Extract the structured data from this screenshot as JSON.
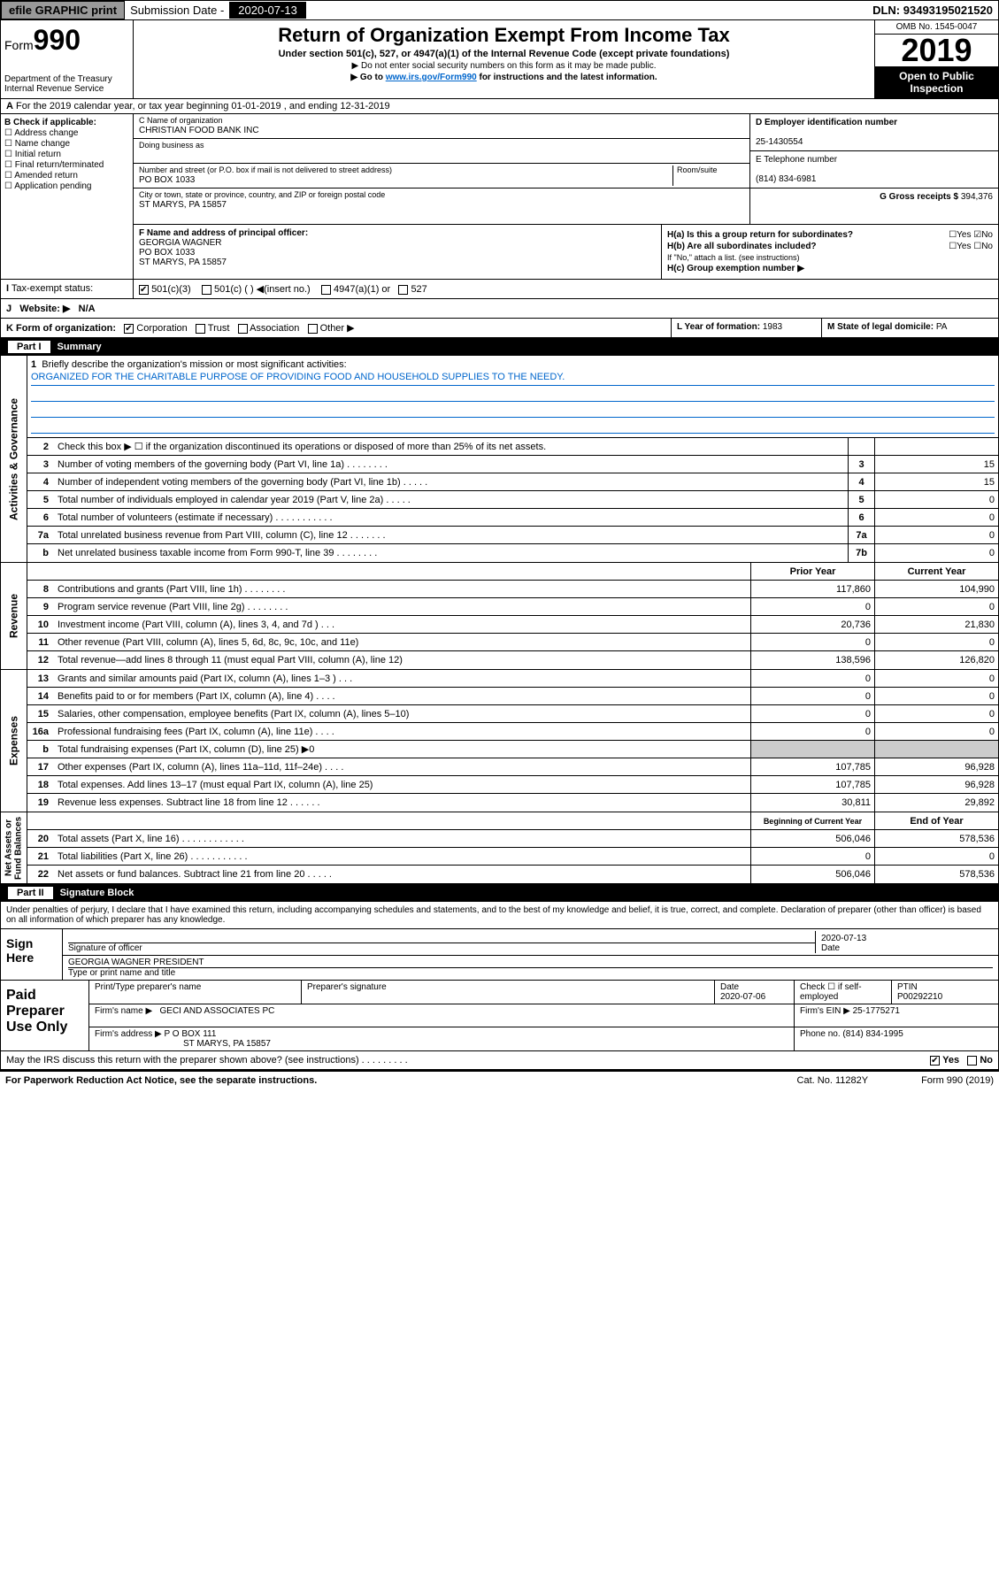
{
  "topbar": {
    "efile": "efile GRAPHIC print",
    "sub_label": "Submission Date - ",
    "sub_date": "2020-07-13",
    "dln_label": "DLN: ",
    "dln": "93493195021520"
  },
  "header": {
    "form_prefix": "Form",
    "form_num": "990",
    "dept": "Department of the Treasury\nInternal Revenue Service",
    "title": "Return of Organization Exempt From Income Tax",
    "subtitle": "Under section 501(c), 527, or 4947(a)(1) of the Internal Revenue Code (except private foundations)",
    "note1": "▶ Do not enter social security numbers on this form as it may be made public.",
    "note2_pre": "▶ Go to ",
    "note2_link": "www.irs.gov/Form990",
    "note2_post": " for instructions and the latest information.",
    "omb": "OMB No. 1545-0047",
    "year": "2019",
    "open": "Open to Public Inspection"
  },
  "line_a": "For the 2019 calendar year, or tax year beginning 01-01-2019     , and ending 12-31-2019",
  "box_b": {
    "label": "B Check if applicable:",
    "opts": [
      "Address change",
      "Name change",
      "Initial return",
      "Final return/terminated",
      "Amended return",
      "Application pending"
    ]
  },
  "box_c": {
    "name_lbl": "C Name of organization",
    "name": "CHRISTIAN FOOD BANK INC",
    "dba_lbl": "Doing business as",
    "street_lbl": "Number and street (or P.O. box if mail is not delivered to street address)",
    "street": "PO BOX 1033",
    "room_lbl": "Room/suite",
    "city_lbl": "City or town, state or province, country, and ZIP or foreign postal code",
    "city": "ST MARYS, PA  15857"
  },
  "box_d": {
    "ein_lbl": "D Employer identification number",
    "ein": "25-1430554",
    "tel_lbl": "E Telephone number",
    "tel": "(814) 834-6981",
    "gross_lbl": "G Gross receipts $ ",
    "gross": "394,376"
  },
  "box_f": {
    "lbl": "F  Name and address of principal officer:",
    "name": "GEORGIA WAGNER",
    "addr1": "PO BOX 1033",
    "addr2": "ST MARYS, PA   15857"
  },
  "box_h": {
    "a": "H(a)  Is this a group return for subordinates?",
    "b": "H(b)  Are all subordinates included?",
    "b_note": "If \"No,\" attach a list. (see instructions)",
    "c": "H(c)  Group exemption number ▶"
  },
  "row_i": {
    "lbl": "Tax-exempt status:",
    "o1": "501(c)(3)",
    "o2": "501(c) (   ) ◀(insert no.)",
    "o3": "4947(a)(1) or",
    "o4": "527"
  },
  "row_j": {
    "lbl": "Website: ▶",
    "val": "N/A"
  },
  "row_k": {
    "k1": "K Form of organization:",
    "opts": [
      "Corporation",
      "Trust",
      "Association",
      "Other ▶"
    ],
    "l_lbl": "L Year of formation: ",
    "l_val": "1983",
    "m_lbl": "M State of legal domicile: ",
    "m_val": "PA"
  },
  "part1": {
    "num": "Part I",
    "title": "Summary"
  },
  "mission": {
    "num": "1",
    "lbl": "Briefly describe the organization's mission or most significant activities:",
    "txt": "ORGANIZED FOR THE CHARITABLE PURPOSE OF PROVIDING FOOD AND HOUSEHOLD SUPPLIES TO THE NEEDY."
  },
  "gov_rows": [
    {
      "n": "2",
      "t": "Check this box ▶ ☐  if the organization discontinued its operations or disposed of more than 25% of its net assets.",
      "bn": "",
      "v": ""
    },
    {
      "n": "3",
      "t": "Number of voting members of the governing body (Part VI, line 1a)  .    .    .    .    .    .    .    .",
      "bn": "3",
      "v": "15"
    },
    {
      "n": "4",
      "t": "Number of independent voting members of the governing body (Part VI, line 1b)  .    .    .    .    .",
      "bn": "4",
      "v": "15"
    },
    {
      "n": "5",
      "t": "Total number of individuals employed in calendar year 2019 (Part V, line 2a)   .    .    .    .    .",
      "bn": "5",
      "v": "0"
    },
    {
      "n": "6",
      "t": "Total number of volunteers (estimate if necessary)   .    .    .    .    .    .    .    .    .    .    .",
      "bn": "6",
      "v": "0"
    },
    {
      "n": "7a",
      "t": "Total unrelated business revenue from Part VIII, column (C), line 12  .    .    .    .    .    .    .",
      "bn": "7a",
      "v": "0"
    },
    {
      "n": "b",
      "t": "Net unrelated business taxable income from Form 990-T, line 39   .    .    .    .    .    .    .    .",
      "bn": "7b",
      "v": "0"
    }
  ],
  "two_col_hdr": {
    "py": "Prior Year",
    "cy": "Current Year"
  },
  "rev_rows": [
    {
      "n": "8",
      "t": "Contributions and grants (Part VIII, line 1h)   .    .    .    .    .    .    .    .",
      "py": "117,860",
      "cy": "104,990"
    },
    {
      "n": "9",
      "t": "Program service revenue (Part VIII, line 2g)   .    .    .    .    .    .    .    .",
      "py": "0",
      "cy": "0"
    },
    {
      "n": "10",
      "t": "Investment income (Part VIII, column (A), lines 3, 4, and 7d )   .    .    .",
      "py": "20,736",
      "cy": "21,830"
    },
    {
      "n": "11",
      "t": "Other revenue (Part VIII, column (A), lines 5, 6d, 8c, 9c, 10c, and 11e)",
      "py": "0",
      "cy": "0"
    },
    {
      "n": "12",
      "t": "Total revenue—add lines 8 through 11 (must equal Part VIII, column (A), line 12)",
      "py": "138,596",
      "cy": "126,820"
    }
  ],
  "exp_rows": [
    {
      "n": "13",
      "t": "Grants and similar amounts paid (Part IX, column (A), lines 1–3 )   .    .    .",
      "py": "0",
      "cy": "0"
    },
    {
      "n": "14",
      "t": "Benefits paid to or for members (Part IX, column (A), line 4)   .    .    .    .",
      "py": "0",
      "cy": "0"
    },
    {
      "n": "15",
      "t": "Salaries, other compensation, employee benefits (Part IX, column (A), lines 5–10)",
      "py": "0",
      "cy": "0"
    },
    {
      "n": "16a",
      "t": "Professional fundraising fees (Part IX, column (A), line 11e)   .    .    .    .",
      "py": "0",
      "cy": "0"
    },
    {
      "n": "b",
      "t": "Total fundraising expenses (Part IX, column (D), line 25) ▶0",
      "py": "",
      "cy": "",
      "grey": true
    },
    {
      "n": "17",
      "t": "Other expenses (Part IX, column (A), lines 11a–11d, 11f–24e)   .    .    .    .",
      "py": "107,785",
      "cy": "96,928"
    },
    {
      "n": "18",
      "t": "Total expenses. Add lines 13–17 (must equal Part IX, column (A), line 25)",
      "py": "107,785",
      "cy": "96,928"
    },
    {
      "n": "19",
      "t": "Revenue less expenses. Subtract line 18 from line 12   .    .    .    .    .    .",
      "py": "30,811",
      "cy": "29,892"
    }
  ],
  "na_hdr": {
    "py": "Beginning of Current Year",
    "cy": "End of Year"
  },
  "na_rows": [
    {
      "n": "20",
      "t": "Total assets (Part X, line 16)   .    .    .    .    .    .    .    .    .    .    .    .",
      "py": "506,046",
      "cy": "578,536"
    },
    {
      "n": "21",
      "t": "Total liabilities (Part X, line 26)   .    .    .    .    .    .    .    .    .    .    .",
      "py": "0",
      "cy": "0"
    },
    {
      "n": "22",
      "t": "Net assets or fund balances. Subtract line 21 from line 20   .    .    .    .    .",
      "py": "506,046",
      "cy": "578,536"
    }
  ],
  "vtabs": {
    "gov": "Activities & Governance",
    "rev": "Revenue",
    "exp": "Expenses",
    "na": "Net Assets or\nFund Balances"
  },
  "part2": {
    "num": "Part II",
    "title": "Signature Block"
  },
  "sig_decl": "Under penalties of perjury, I declare that I have examined this return, including accompanying schedules and statements, and to the best of my knowledge and belief, it is true, correct, and complete. Declaration of preparer (other than officer) is based on all information of which preparer has any knowledge.",
  "sign": {
    "side": "Sign Here",
    "sig_lbl": "Signature of officer",
    "date": "2020-07-13",
    "date_lbl": "Date",
    "name": "GEORGIA WAGNER  PRESIDENT",
    "name_lbl": "Type or print name and title"
  },
  "paid": {
    "side": "Paid Preparer Use Only",
    "h1": "Print/Type preparer's name",
    "h2": "Preparer's signature",
    "h3": "Date",
    "date": "2020-07-06",
    "h4": "Check ☐ if self-employed",
    "h5": "PTIN",
    "ptin": "P00292210",
    "firm_lbl": "Firm's name      ▶",
    "firm": "GECI AND ASSOCIATES PC",
    "ein_lbl": "Firm's EIN ▶ ",
    "ein": "25-1775271",
    "addr_lbl": "Firm's address ▶",
    "addr1": "P O BOX 111",
    "addr2": "ST MARYS, PA   15857",
    "phone_lbl": "Phone no. ",
    "phone": "(814) 834-1995"
  },
  "discuss": "May the IRS discuss this return with the preparer shown above? (see instructions)    .    .    .    .    .    .    .    .    .",
  "footer": {
    "l": "For Paperwork Reduction Act Notice, see the separate instructions.",
    "m": "Cat. No. 11282Y",
    "r": "Form 990 (2019)"
  }
}
